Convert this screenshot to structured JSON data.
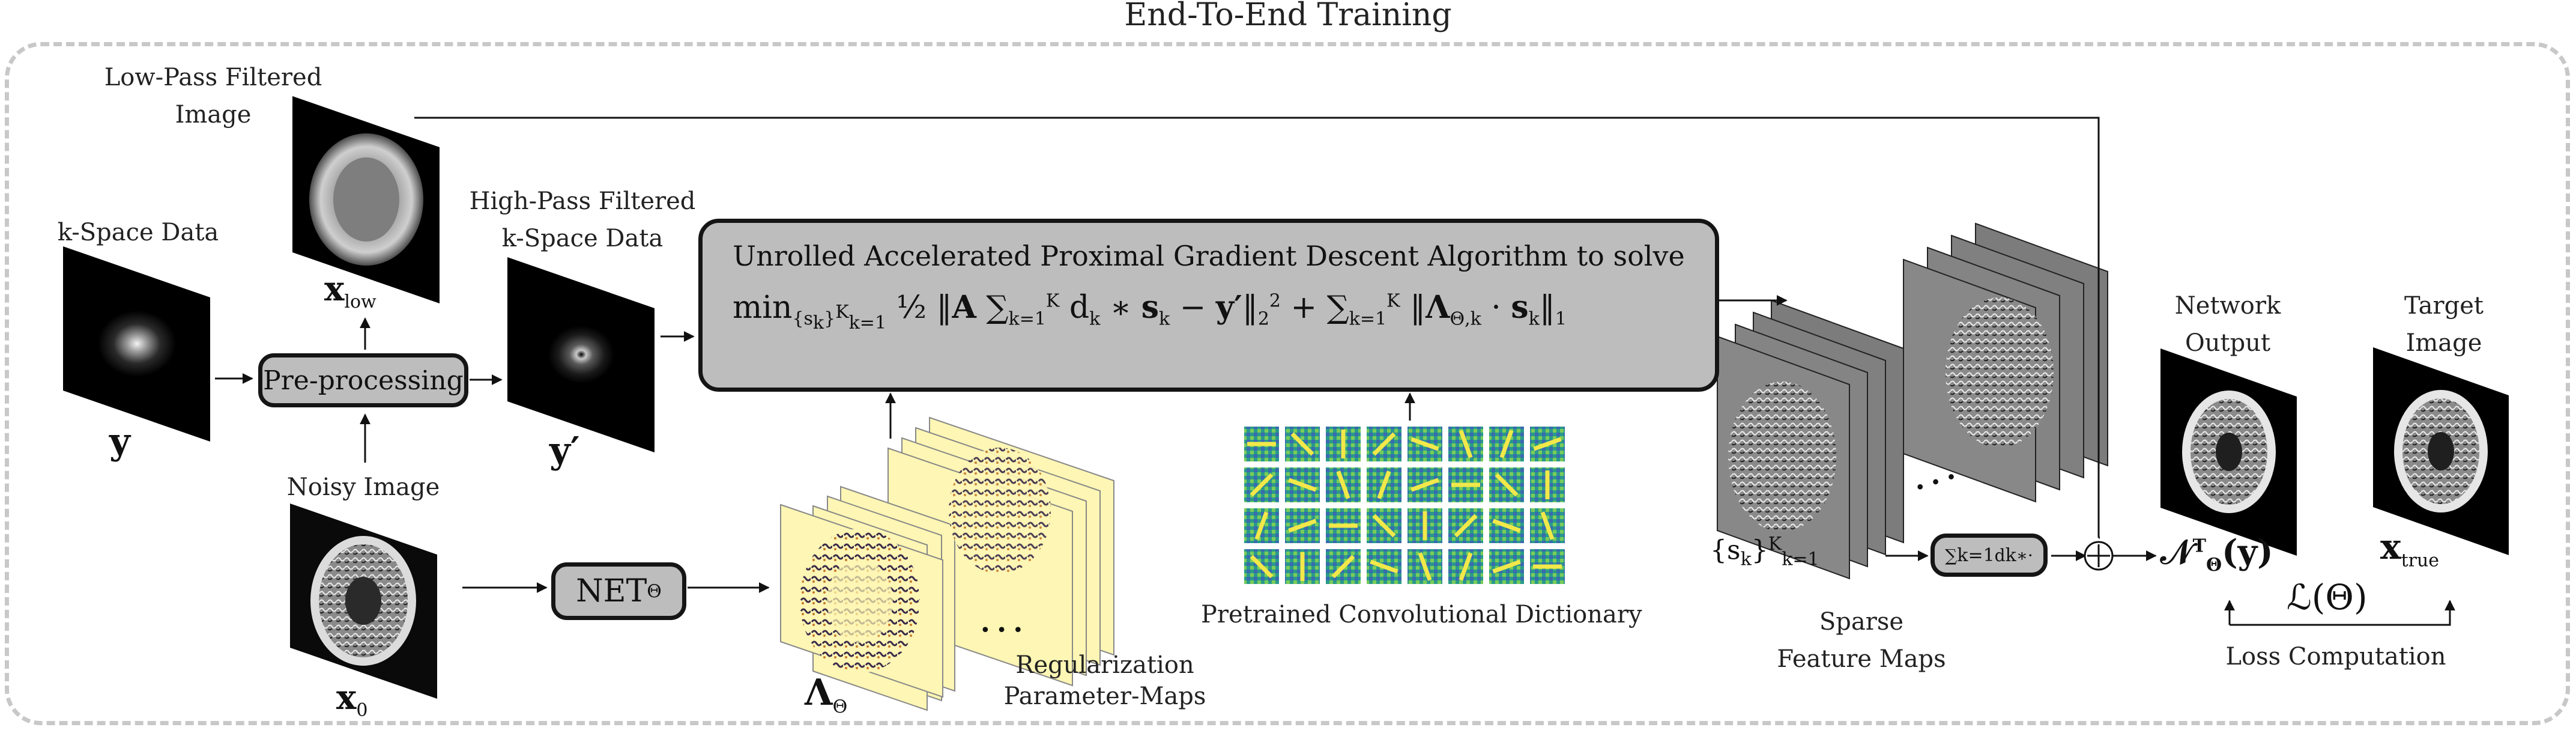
{
  "title": "End-To-End Training",
  "labels": {
    "kspace": "k-Space Data",
    "lowpass_line1": "Low-Pass Filtered",
    "lowpass_line2": "Image",
    "highpass_line1": "High-Pass Filtered",
    "highpass_line2": "k-Space Data",
    "noisy": "Noisy Image",
    "reg_line1": "Regularization",
    "reg_line2": "Parameter-Maps",
    "dictionary": "Pretrained Convolutional Dictionary",
    "sparse_line1": "Sparse",
    "sparse_line2": "Feature Maps",
    "netout_line1": "Network",
    "netout_line2": "Output",
    "target_line1": "Target",
    "target_line2": "Image",
    "loss": "Loss Computation"
  },
  "boxes": {
    "preprocessing": "Pre-processing",
    "net": "NET",
    "net_sub": "Θ",
    "apgd_title": "Unrolled Accelerated Proximal Gradient Descent Algorithm to solve"
  },
  "math": {
    "y": "y",
    "yprime": "y′",
    "x_low": "x",
    "x_low_sub": "low",
    "x0": "x",
    "x0_sub": "0",
    "lambda": "Λ",
    "lambda_sub": "Θ",
    "sk_set": "{s",
    "sk_set_tail": "}",
    "sum_op": "∑",
    "sum_tail": "d",
    "netout": "𝒩",
    "netout_tail": "(y)",
    "x_true": "x",
    "x_true_sub": "true",
    "loss": "ℒ(Θ)",
    "plus": "+",
    "dots": "• • •"
  },
  "colors": {
    "box_fill": "#bdbdbd",
    "border": "#151515",
    "dashed_frame": "#c8c8c8",
    "param_map": "#fdf6b4"
  }
}
